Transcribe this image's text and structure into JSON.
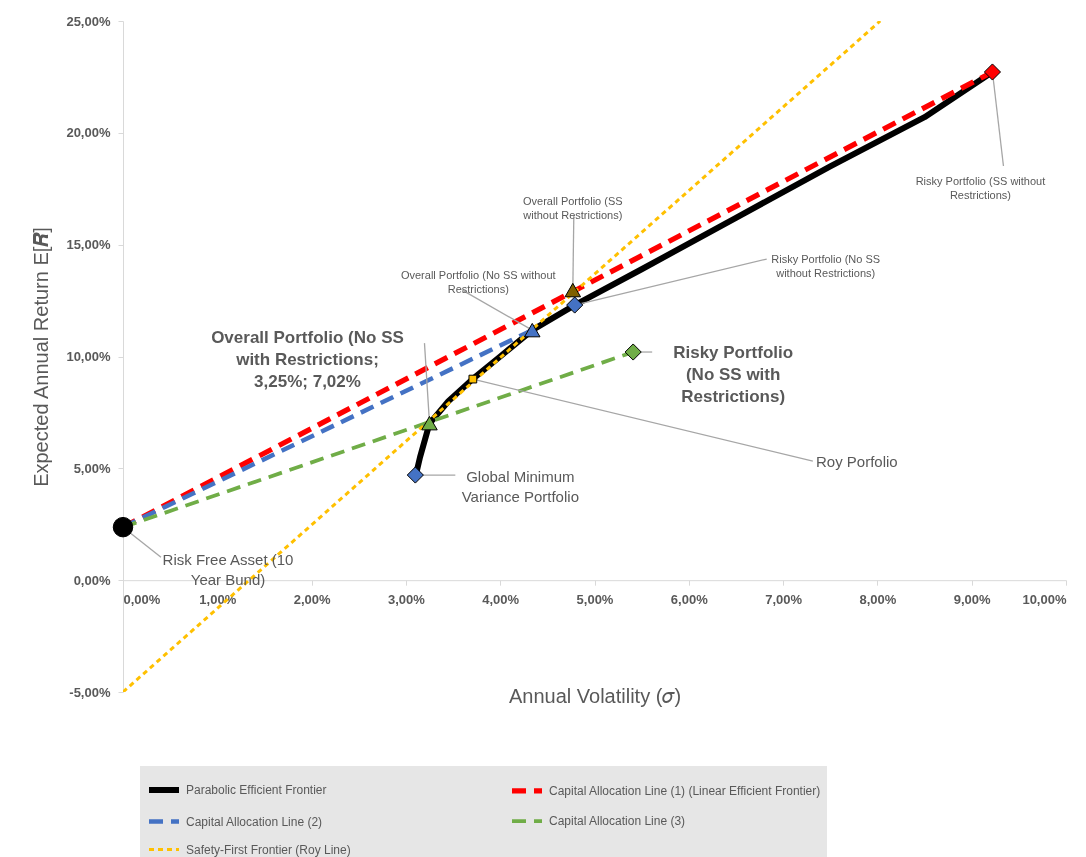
{
  "chart_data": {
    "type": "line",
    "xlabel": "Annual Volatility (𝜎)",
    "ylabel": "Expected Annual Return E[𝑹]",
    "xlim": [
      0,
      10
    ],
    "ylim": [
      -5,
      25
    ],
    "xticks": [
      {
        "value": 0,
        "label": "0,00%"
      },
      {
        "value": 1,
        "label": "1,00%"
      },
      {
        "value": 2,
        "label": "2,00%"
      },
      {
        "value": 3,
        "label": "3,00%"
      },
      {
        "value": 4,
        "label": "4,00%"
      },
      {
        "value": 5,
        "label": "5,00%"
      },
      {
        "value": 6,
        "label": "6,00%"
      },
      {
        "value": 7,
        "label": "7,00%"
      },
      {
        "value": 8,
        "label": "8,00%"
      },
      {
        "value": 9,
        "label": "9,00%"
      },
      {
        "value": 10,
        "label": "10,00%"
      }
    ],
    "yticks": [
      {
        "value": -5,
        "label": "-5,00%"
      },
      {
        "value": 0,
        "label": "0,00%"
      },
      {
        "value": 5,
        "label": "5,00%"
      },
      {
        "value": 10,
        "label": "10,00%"
      },
      {
        "value": 15,
        "label": "15,00%"
      },
      {
        "value": 20,
        "label": "20,00%"
      },
      {
        "value": 25,
        "label": "25,00%"
      }
    ],
    "grid": false,
    "legend": "bottom",
    "series": [
      {
        "name": "Parabolic Efficient Frontier",
        "color": "#000000",
        "line_style": "solid",
        "x": [
          3.1,
          3.15,
          3.25,
          3.45,
          3.71,
          4.0,
          4.34,
          4.79,
          5.5,
          6.5,
          7.5,
          8.5,
          9.22
        ],
        "values": [
          4.6,
          5.5,
          7.0,
          8.0,
          9.0,
          10.0,
          11.18,
          12.3,
          13.9,
          16.2,
          18.5,
          20.7,
          22.72
        ]
      },
      {
        "name": "Capital Allocation Line (1) (Linear Efficient Frontier)",
        "color": "#ff0000",
        "line_style": "dashed",
        "x": [
          0,
          9.22
        ],
        "values": [
          2.37,
          22.72
        ]
      },
      {
        "name": "Capital Allocation Line (2)",
        "color": "#4472c4",
        "line_style": "dashed",
        "x": [
          0,
          4.34
        ],
        "values": [
          2.37,
          11.18
        ]
      },
      {
        "name": "Capital Allocation Line (3)",
        "color": "#70ad47",
        "line_style": "dashed",
        "x": [
          0,
          5.41
        ],
        "values": [
          2.37,
          10.2
        ]
      },
      {
        "name": "Safety-First Frontier (Roy Line)",
        "color": "#ffc000",
        "line_style": "dotted",
        "x": [
          0,
          8.03
        ],
        "values": [
          -5,
          25
        ]
      },
      {
        "type": "scatter",
        "color": "#000000",
        "marker": "circle",
        "x": [
          0
        ],
        "values": [
          2.37
        ]
      },
      {
        "type": "scatter",
        "color": "#4472c4",
        "marker": "diamond",
        "x": [
          3.1
        ],
        "values": [
          4.7
        ]
      },
      {
        "type": "scatter",
        "color": "#70ad47",
        "marker": "triangle",
        "x": [
          3.25
        ],
        "values": [
          7.02
        ]
      },
      {
        "type": "scatter",
        "color": "#ffc000",
        "marker": "square",
        "x": [
          3.71
        ],
        "values": [
          8.99
        ]
      },
      {
        "type": "scatter",
        "color": "#4472c4",
        "marker": "triangle",
        "x": [
          4.34
        ],
        "values": [
          11.18
        ]
      },
      {
        "type": "scatter",
        "color": "#4472c4",
        "marker": "diamond",
        "x": [
          4.79
        ],
        "values": [
          12.3
        ]
      },
      {
        "type": "scatter",
        "color": "#7f6000",
        "marker": "triangle",
        "x": [
          4.77
        ],
        "values": [
          12.97
        ]
      },
      {
        "type": "scatter",
        "color": "#70ad47",
        "marker": "diamond",
        "x": [
          5.41
        ],
        "values": [
          10.2
        ]
      },
      {
        "type": "scatter",
        "color": "#ff0000",
        "marker": "diamond",
        "x": [
          9.22
        ],
        "values": [
          22.72
        ]
      }
    ],
    "annotations": [
      {
        "text": "Risk Free Asset (10 Year Bund)",
        "x": 0,
        "y": 2.37
      },
      {
        "text": "Global Minimum Variance Portfolio",
        "x": 3.1,
        "y": 4.7
      },
      {
        "text": "Overall Portfolio (No SS with Restrictions; 3,25%; 7,02%",
        "x": 3.25,
        "y": 7.02
      },
      {
        "text": "Roy Porfolio",
        "x": 3.71,
        "y": 8.99
      },
      {
        "text": "Overall Portfolio (No SS without Restrictions)",
        "x": 4.34,
        "y": 11.18
      },
      {
        "text": "Risky Portfolio (No SS without Restrictions)",
        "x": 4.79,
        "y": 12.3
      },
      {
        "text": "Overall Portfolio (SS without Restrictions)",
        "x": 4.77,
        "y": 12.97
      },
      {
        "text": "Risky Portfolio (No SS with Restrictions)",
        "x": 5.41,
        "y": 10.2
      },
      {
        "text": "Risky Portfolio (SS without Restrictions)",
        "x": 9.22,
        "y": 22.72
      }
    ]
  }
}
